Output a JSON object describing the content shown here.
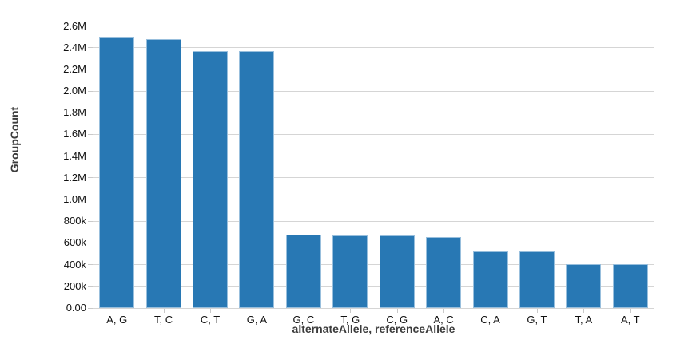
{
  "chart_data": {
    "type": "bar",
    "title": "",
    "xlabel": "alternateAllele, referenceAllele",
    "ylabel": "GroupCount",
    "categories": [
      "A, G",
      "T, C",
      "C, T",
      "G, A",
      "G, C",
      "T, G",
      "C, G",
      "A, C",
      "C, A",
      "G, T",
      "T, A",
      "A, T"
    ],
    "values": [
      2500000,
      2480000,
      2370000,
      2365000,
      675000,
      670000,
      670000,
      655000,
      525000,
      525000,
      405000,
      405000
    ],
    "ylim": [
      0,
      2600000
    ],
    "yticks": [
      {
        "value": 0,
        "label": "0.00"
      },
      {
        "value": 200000,
        "label": "200k"
      },
      {
        "value": 400000,
        "label": "400k"
      },
      {
        "value": 600000,
        "label": "600k"
      },
      {
        "value": 800000,
        "label": "800k"
      },
      {
        "value": 1000000,
        "label": "1.0M"
      },
      {
        "value": 1200000,
        "label": "1.2M"
      },
      {
        "value": 1400000,
        "label": "1.4M"
      },
      {
        "value": 1600000,
        "label": "1.6M"
      },
      {
        "value": 1800000,
        "label": "1.8M"
      },
      {
        "value": 2000000,
        "label": "2.0M"
      },
      {
        "value": 2200000,
        "label": "2.2M"
      },
      {
        "value": 2400000,
        "label": "2.4M"
      },
      {
        "value": 2600000,
        "label": "2.6M"
      }
    ],
    "grid": "horizontal",
    "legend": "none",
    "bar_color": "#2878b4",
    "gridline_color": "#d5d5d5",
    "axis_line_color": "#c9c9c9",
    "tick_label_color": "#111111",
    "axis_title_color": "#3c3c3c"
  }
}
